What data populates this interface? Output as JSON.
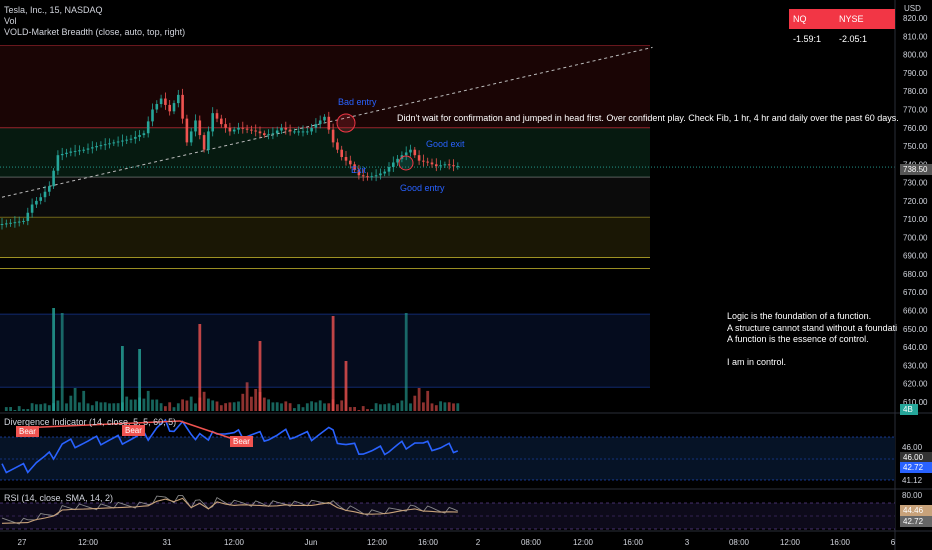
{
  "header": {
    "symbol_line": "Tesla, Inc., 15, NASDAQ",
    "vol_label": "Vol",
    "vold_label": "VOLD-Market Breadth (close, auto, top, right)"
  },
  "badges": {
    "nq": "NQ -1.59:1",
    "nyse": "NYSE -2.05:1"
  },
  "price_axis": {
    "currency": "USD",
    "ticks": [
      "820.00",
      "810.00",
      "800.00",
      "790.00",
      "780.00",
      "770.00",
      "760.00",
      "750.00",
      "740.00",
      "730.00",
      "720.00",
      "710.00",
      "700.00",
      "690.00",
      "680.00",
      "670.00",
      "660.00",
      "650.00",
      "640.00",
      "630.00",
      "620.00",
      "610.00"
    ],
    "last_price": "738.50",
    "vol_tag": "4B"
  },
  "annotations": {
    "bad_entry": "Bad entry",
    "good_exit": "Good exit",
    "exit": "Exit",
    "good_entry": "Good entry",
    "comment": "Didn't wait for confirmation and jumped in head first. Over confident play. Check Fib, 1 hr, 4 hr and daily over the past 60 days.",
    "logic_lines": [
      "Logic is the foundation of a function.",
      "A structure cannot stand without a foundation.",
      "A function is the essence of control.",
      "",
      "I am in control."
    ]
  },
  "divergence": {
    "label": "Divergence Indicator (14, close, 5, 5, 60, 5)",
    "bear1": "Bear",
    "bear2": "Bear",
    "axis_ticks": [
      "46.00",
      "41.12"
    ],
    "tag_value": "42.72",
    "tag_gray": "46.00"
  },
  "rsi": {
    "label": "RSI (14, close, SMA, 14, 2)",
    "axis_ticks": [
      "80.00"
    ],
    "tag_orange": "44.46",
    "tag_gray": "42.72"
  },
  "time_axis": {
    "labels": [
      "27",
      "12:00",
      "31",
      "12:00",
      "Jun",
      "12:00",
      "16:00",
      "2",
      "08:00",
      "12:00",
      "16:00",
      "3",
      "08:00",
      "12:00",
      "16:00",
      "6"
    ]
  },
  "colors": {
    "up": "#26a69a",
    "down": "#ef5350",
    "rsi_line": "#c8a27a",
    "div_line": "#2962ff",
    "badge": "#f23645"
  },
  "chart_data": {
    "type": "candlestick",
    "symbol": "TSLA",
    "timeframe": "15",
    "ylim": [
      605,
      825
    ],
    "close_path": [
      [
        0,
        707
      ],
      [
        3,
        708
      ],
      [
        6,
        709
      ],
      [
        8,
        718
      ],
      [
        10,
        722
      ],
      [
        12,
        728
      ],
      [
        14,
        745
      ],
      [
        17,
        747
      ],
      [
        20,
        748
      ],
      [
        23,
        750
      ],
      [
        27,
        752
      ],
      [
        31,
        754
      ],
      [
        34,
        757
      ],
      [
        36,
        770
      ],
      [
        38,
        776
      ],
      [
        40,
        769
      ],
      [
        42,
        778
      ],
      [
        44,
        752
      ],
      [
        46,
        764
      ],
      [
        48,
        748
      ],
      [
        50,
        768
      ],
      [
        52,
        762
      ],
      [
        54,
        758
      ],
      [
        56,
        760
      ],
      [
        60,
        758
      ],
      [
        62,
        756
      ],
      [
        64,
        757
      ],
      [
        66,
        760
      ],
      [
        68,
        758
      ],
      [
        72,
        758
      ],
      [
        74,
        762
      ],
      [
        76,
        766
      ],
      [
        78,
        752
      ],
      [
        80,
        744
      ],
      [
        82,
        740
      ],
      [
        84,
        734
      ],
      [
        86,
        733
      ],
      [
        88,
        734
      ],
      [
        90,
        736
      ],
      [
        92,
        741
      ],
      [
        94,
        745
      ],
      [
        96,
        748
      ],
      [
        98,
        742
      ],
      [
        100,
        741
      ],
      [
        102,
        739
      ],
      [
        104,
        740
      ],
      [
        106,
        739
      ]
    ],
    "volume_heights": [
      0,
      1,
      0,
      0,
      1,
      1,
      0,
      2,
      3,
      2,
      4,
      2,
      2,
      5,
      50,
      4,
      7,
      10,
      4,
      9,
      4,
      2,
      3,
      4,
      3,
      4,
      3,
      2,
      4,
      6,
      6,
      5,
      5,
      6,
      9,
      6,
      5,
      2,
      2,
      3,
      2,
      3,
      4,
      5,
      6,
      4,
      6,
      8,
      6,
      4,
      5,
      2,
      2,
      4,
      3,
      5,
      8,
      13,
      7,
      10,
      10,
      6,
      4,
      4,
      3,
      4,
      4,
      2,
      1,
      2,
      2,
      3,
      3,
      4,
      4,
      4,
      3,
      4,
      3,
      4
    ],
    "horizontal_levels": [
      760,
      733,
      711,
      689,
      683,
      658,
      618
    ],
    "trendline": {
      "from": [
        0,
        722
      ],
      "to": [
        135,
        804
      ]
    }
  }
}
